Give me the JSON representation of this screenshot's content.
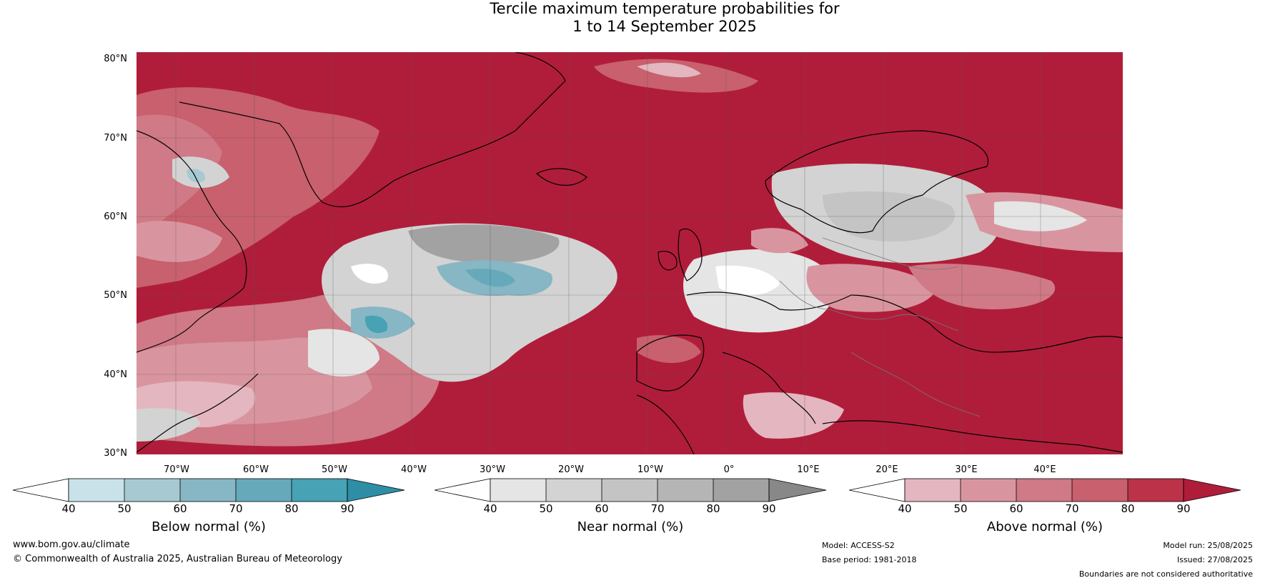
{
  "title": {
    "line1": "Tercile maximum temperature probabilities for",
    "line2": "1 to 14 September 2025"
  },
  "lat_labels": [
    "80°N",
    "70°N",
    "60°N",
    "50°N",
    "40°N",
    "30°N"
  ],
  "lon_labels": [
    "70°W",
    "60°W",
    "50°W",
    "40°W",
    "30°W",
    "20°W",
    "10°W",
    "0°",
    "10°E",
    "20°E",
    "30°E",
    "40°E"
  ],
  "colorbars": [
    {
      "label": "Below normal (%)",
      "ticks": [
        "40",
        "50",
        "60",
        "70",
        "80",
        "90"
      ],
      "colors": [
        "#ffffff",
        "#c9e2ea",
        "#a7c9d2",
        "#87b6c4",
        "#66a9bb",
        "#46a2b4",
        "#2e8ea5"
      ]
    },
    {
      "label": "Near normal (%)",
      "ticks": [
        "40",
        "50",
        "60",
        "70",
        "80",
        "90"
      ],
      "colors": [
        "#ffffff",
        "#e5e5e5",
        "#d3d3d3",
        "#c4c4c4",
        "#b5b5b5",
        "#a2a2a2",
        "#888888"
      ]
    },
    {
      "label": "Above normal (%)",
      "ticks": [
        "40",
        "50",
        "60",
        "70",
        "80",
        "90"
      ],
      "colors": [
        "#ffffff",
        "#e4b6bf",
        "#d9959f",
        "#cf7a86",
        "#c8606d",
        "#bc3349",
        "#b01d3a"
      ]
    }
  ],
  "footer": {
    "url": "www.bom.gov.au/climate",
    "copyright": "© Commonwealth of Australia 2025, Australian Bureau of Meteorology",
    "model": "Model: ACCESS-S2",
    "base_period": "Base period: 1981-2018",
    "model_run": "Model run: 25/08/2025",
    "issued": "Issued: 27/08/2025",
    "disclaimer": "Boundaries are not considered authoritative"
  }
}
